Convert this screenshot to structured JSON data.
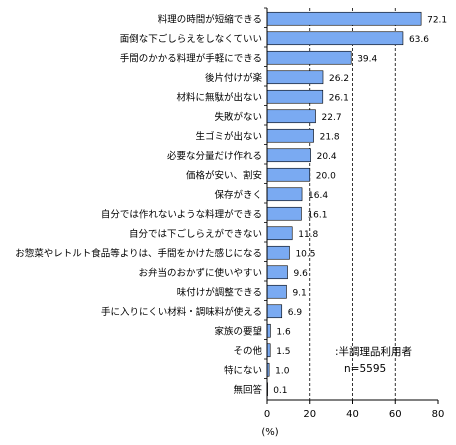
{
  "chart_data": {
    "type": "bar",
    "orientation": "horizontal",
    "categories": [
      "料理の時間が短縮できる",
      "面倒な下ごしらえをしなくていい",
      "手間のかかる料理が手軽にできる",
      "後片付けが楽",
      "材料に無駄が出ない",
      "失敗がない",
      "生ゴミが出ない",
      "必要な分量だけ作れる",
      "価格が安い、割安",
      "保存がきく",
      "自分では作れないような料理ができる",
      "自分では下ごしらえができない",
      "お惣菜やレトルト食品等よりは、手間をかけた感じになる",
      "お弁当のおかずに使いやすい",
      "味付けが調整できる",
      "手に入りにくい材料・調味料が使える",
      "家族の要望",
      "その他",
      "特にない",
      "無回答"
    ],
    "values": [
      72.1,
      63.6,
      39.4,
      26.2,
      26.1,
      22.7,
      21.8,
      20.4,
      20.0,
      16.4,
      16.1,
      11.8,
      10.5,
      9.6,
      9.1,
      6.9,
      1.6,
      1.5,
      1.0,
      0.1
    ],
    "value_labels": [
      "72.1",
      "63.6",
      "39.4",
      "26.2",
      "26.1",
      "22.7",
      "21.8",
      "20.4",
      "20.0",
      "16.4",
      "16.1",
      "11.8",
      "10.5",
      "9.6",
      "9.1",
      "6.9",
      "1.6",
      "1.5",
      "1.0",
      "0.1"
    ],
    "xlim": [
      0,
      80
    ],
    "xticks": [
      0,
      20,
      40,
      60,
      80
    ],
    "xlabel": "(%)",
    "grid": "vertical dashed",
    "bar_color": "#7aaaf2",
    "bar_edge_color": "#000000",
    "note_lines": [
      ":半調理品利用者",
      "n=5595"
    ]
  }
}
